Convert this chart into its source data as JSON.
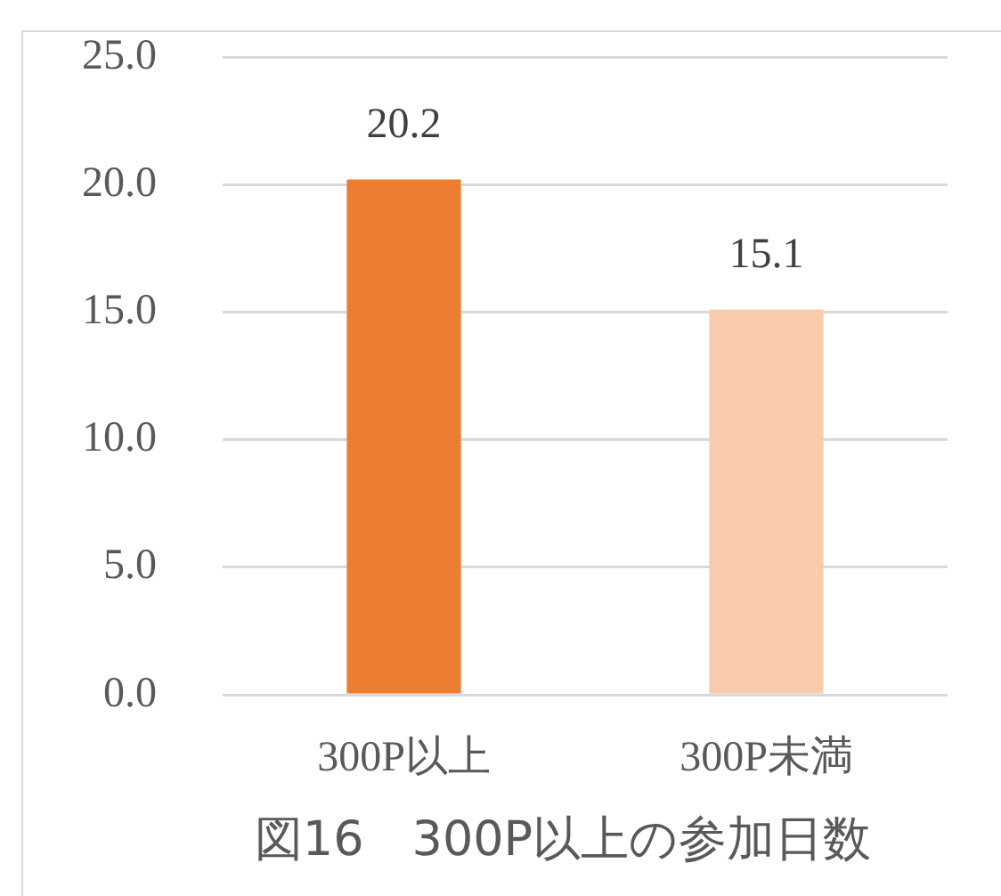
{
  "chart_data": {
    "type": "bar",
    "title": "図16　300P以上の参加日数",
    "categories": [
      "300P以上",
      "300P未満"
    ],
    "values": [
      20.2,
      15.1
    ],
    "colors": [
      "#ed7d31",
      "#f8cbad"
    ],
    "ylim": [
      0,
      25
    ],
    "yticks": [
      {
        "value": 0,
        "label": "0.0"
      },
      {
        "value": 5,
        "label": "5.0"
      },
      {
        "value": 10,
        "label": "10.0"
      },
      {
        "value": 15,
        "label": "15.0"
      },
      {
        "value": 20,
        "label": "20.0"
      },
      {
        "value": 25,
        "label": "25.0"
      }
    ],
    "grid": "y",
    "data_labels": true,
    "legend": false
  }
}
